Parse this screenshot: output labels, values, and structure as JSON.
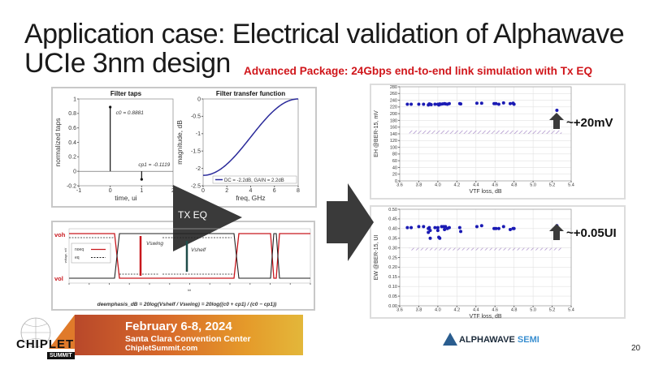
{
  "slide": {
    "title": "Application case: Electrical validation of Alphawave UCIe 3nm design",
    "subtitle": "Advanced Package: 24Gbps end-to-end link simulation with Tx EQ",
    "tx_eq_label": "TX EQ",
    "eh_note": "~+20mV",
    "ew_note": "~+0.05UI",
    "page_number": "20",
    "arrow_color": "#3a3a3a",
    "subtitle_color": "#d0161b"
  },
  "waveform": {
    "voh_label": "voh",
    "vol_label": "vol",
    "y_label": "voltage, mV",
    "x_label": "bit",
    "legend": [
      "noeq",
      "eq"
    ],
    "v_swing": "Vswing",
    "v_shelf": "Vshelf",
    "formula": "deemphasis_dB = 20log(Vshelf / Vswing) = 20log((c0 + cp1) / (c0 − cp1))",
    "colors": {
      "noeq": "#c8171d",
      "eq": "#222222",
      "v_shelf_arrow": "#1f4d4a"
    }
  },
  "banner": {
    "date": "February 6-8, 2024",
    "venue": "Santa Clara Convention Center",
    "site": "ChipletSummit.com",
    "logo_text": "CHIPLET",
    "logo_sub": "SUMMIT"
  },
  "company_logo": {
    "name": "ALPHAWAVE",
    "suffix": "SEMI"
  },
  "chart_data": [
    {
      "type": "bar",
      "subtype": "stem",
      "title": "Filter taps",
      "xlabel": "time, ui",
      "ylabel": "normalized taps",
      "xlim": [
        -1,
        2
      ],
      "ylim": [
        -0.2,
        1
      ],
      "xticks": [
        "-1",
        "0",
        "1",
        "2"
      ],
      "yticks": [
        "-0.2",
        "0",
        "0.2",
        "0.4",
        "0.6",
        "0.8",
        "1"
      ],
      "x": [
        0,
        1
      ],
      "values": [
        0.8881,
        -0.1119
      ],
      "labels": [
        "c0 = 0.8881",
        "cp1 = -0.1119"
      ],
      "grid": false
    },
    {
      "type": "line",
      "title": "Filter transfer function",
      "xlabel": "freq, GHz",
      "ylabel": "magnitude, dB",
      "xlim": [
        0,
        8
      ],
      "ylim": [
        -2.5,
        0
      ],
      "xticks": [
        "0",
        "2",
        "4",
        "6",
        "8"
      ],
      "yticks": [
        "-2.5",
        "-2",
        "-1.5",
        "-1",
        "-0.5",
        "0"
      ],
      "series": [
        {
          "name": "DC = -2.2dB, GAIN = 2.2dB",
          "color": "#2a2a9a",
          "x": [
            0,
            1,
            2,
            3,
            4,
            5,
            6,
            7,
            8
          ],
          "y": [
            -2.2,
            -2.12,
            -1.88,
            -1.52,
            -1.1,
            -0.68,
            -0.32,
            -0.08,
            0
          ]
        }
      ],
      "legend": "bottom-right",
      "grid": false
    },
    {
      "type": "scatter",
      "xlabel": "VTF loss, dB",
      "ylabel": "EH @BER-15, mV",
      "xlim": [
        3.6,
        5.4
      ],
      "ylim": [
        0,
        280
      ],
      "xticks": [
        "3.6",
        "3.8",
        "4.0",
        "4.2",
        "4.4",
        "4.6",
        "4.8",
        "5.0",
        "5.2",
        "5.4"
      ],
      "yticks": [
        "0",
        "20",
        "40",
        "60",
        "80",
        "100",
        "120",
        "140",
        "160",
        "180",
        "200",
        "220",
        "240",
        "260",
        "280"
      ],
      "points": [
        [
          3.68,
          228
        ],
        [
          3.72,
          228
        ],
        [
          3.8,
          228
        ],
        [
          3.85,
          228
        ],
        [
          3.9,
          226
        ],
        [
          3.91,
          229
        ],
        [
          3.92,
          228
        ],
        [
          3.93,
          227
        ],
        [
          3.97,
          228
        ],
        [
          4.0,
          228
        ],
        [
          4.01,
          226
        ],
        [
          4.02,
          229
        ],
        [
          4.03,
          228
        ],
        [
          4.05,
          229
        ],
        [
          4.07,
          230
        ],
        [
          4.08,
          229
        ],
        [
          4.1,
          228
        ],
        [
          4.12,
          230
        ],
        [
          4.23,
          230
        ],
        [
          4.24,
          229
        ],
        [
          4.41,
          231
        ],
        [
          4.46,
          231
        ],
        [
          4.59,
          230
        ],
        [
          4.61,
          230
        ],
        [
          4.64,
          228
        ],
        [
          4.69,
          232
        ],
        [
          4.76,
          230
        ],
        [
          4.79,
          231
        ],
        [
          4.8,
          228
        ],
        [
          5.25,
          210
        ]
      ],
      "threshold": {
        "x": [
          3.7,
          5.3
        ],
        "y": [
          140,
          150
        ]
      },
      "point_color": "#1a1ab4",
      "grid": true
    },
    {
      "type": "scatter",
      "xlabel": "VTF loss, dB",
      "ylabel": "EW @BER-15, UI",
      "xlim": [
        3.6,
        5.4
      ],
      "ylim": [
        0,
        0.5
      ],
      "xticks": [
        "3.6",
        "3.8",
        "4.0",
        "4.2",
        "4.4",
        "4.6",
        "4.8",
        "5.0",
        "5.2",
        "5.4"
      ],
      "yticks": [
        "0.00",
        "0.05",
        "0.10",
        "0.15",
        "0.20",
        "0.25",
        "0.30",
        "0.35",
        "0.40",
        "0.45",
        "0.50"
      ],
      "points": [
        [
          3.68,
          0.405
        ],
        [
          3.72,
          0.405
        ],
        [
          3.8,
          0.41
        ],
        [
          3.85,
          0.41
        ],
        [
          3.9,
          0.38
        ],
        [
          3.9,
          0.4
        ],
        [
          3.91,
          0.405
        ],
        [
          3.92,
          0.39
        ],
        [
          3.92,
          0.35
        ],
        [
          3.97,
          0.405
        ],
        [
          4.0,
          0.39
        ],
        [
          4.0,
          0.405
        ],
        [
          4.01,
          0.355
        ],
        [
          4.02,
          0.35
        ],
        [
          4.04,
          0.41
        ],
        [
          4.06,
          0.41
        ],
        [
          4.07,
          0.395
        ],
        [
          4.08,
          0.41
        ],
        [
          4.1,
          0.4
        ],
        [
          4.12,
          0.405
        ],
        [
          4.23,
          0.405
        ],
        [
          4.24,
          0.385
        ],
        [
          4.41,
          0.41
        ],
        [
          4.46,
          0.415
        ],
        [
          4.59,
          0.4
        ],
        [
          4.61,
          0.4
        ],
        [
          4.64,
          0.4
        ],
        [
          4.69,
          0.41
        ],
        [
          4.76,
          0.395
        ],
        [
          4.79,
          0.4
        ],
        [
          4.8,
          0.4
        ],
        [
          5.25,
          0.415
        ]
      ],
      "threshold": {
        "x": [
          3.7,
          5.3
        ],
        "y": [
          0.29,
          0.3
        ]
      },
      "point_color": "#1a1ab4",
      "grid": true
    }
  ]
}
